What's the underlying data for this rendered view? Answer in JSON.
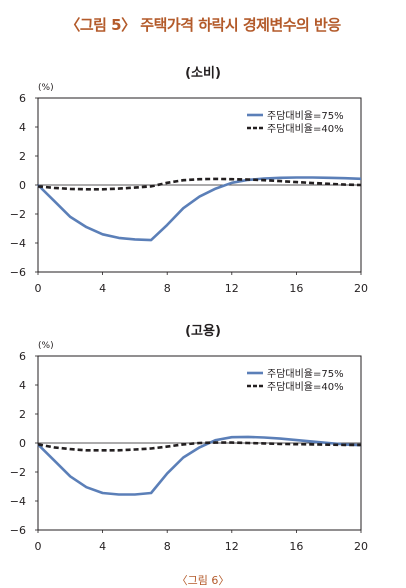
{
  "figure_title": "〈그림 5〉 주택가격 하락시 경제변수의 반응",
  "chart_data": [
    {
      "type": "line",
      "title": "(소비)",
      "unit_label": "(%)",
      "xlim": [
        0,
        20
      ],
      "ylim": [
        -6,
        6
      ],
      "xticks": [
        "0",
        "4",
        "8",
        "12",
        "16",
        "20"
      ],
      "yticks": [
        "6",
        "4",
        "2",
        "0",
        "−2",
        "−4",
        "−6"
      ],
      "legend_position": "top-right",
      "zero_line": true,
      "series": [
        {
          "name": "주담대비율=75%",
          "color": "#5b7fb8",
          "style": "solid",
          "x": [
            0,
            1,
            2,
            3,
            4,
            5,
            6,
            7,
            8,
            9,
            10,
            11,
            12,
            13,
            14,
            15,
            16,
            17,
            18,
            19,
            20
          ],
          "y": [
            0,
            -1.1,
            -2.2,
            -2.9,
            -3.4,
            -3.65,
            -3.75,
            -3.8,
            -2.75,
            -1.6,
            -0.8,
            -0.25,
            0.15,
            0.35,
            0.45,
            0.5,
            0.52,
            0.52,
            0.5,
            0.47,
            0.43
          ]
        },
        {
          "name": "주담대비율=40%",
          "color": "#231f20",
          "style": "dashed",
          "x": [
            0,
            1,
            2,
            3,
            4,
            5,
            6,
            7,
            8,
            9,
            10,
            11,
            12,
            13,
            14,
            15,
            16,
            17,
            18,
            19,
            20
          ],
          "y": [
            -0.1,
            -0.2,
            -0.27,
            -0.3,
            -0.3,
            -0.25,
            -0.18,
            -0.1,
            0.15,
            0.33,
            0.4,
            0.42,
            0.4,
            0.38,
            0.33,
            0.27,
            0.2,
            0.14,
            0.08,
            0.03,
            0.0
          ]
        }
      ]
    },
    {
      "type": "line",
      "title": "(고용)",
      "unit_label": "(%)",
      "xlim": [
        0,
        20
      ],
      "ylim": [
        -6,
        6
      ],
      "xticks": [
        "0",
        "4",
        "8",
        "12",
        "16",
        "20"
      ],
      "yticks": [
        "6",
        "4",
        "2",
        "0",
        "−2",
        "−4",
        "−6"
      ],
      "legend_position": "top-right",
      "zero_line": true,
      "series": [
        {
          "name": "주담대비율=75%",
          "color": "#5b7fb8",
          "style": "solid",
          "x": [
            0,
            1,
            2,
            3,
            4,
            5,
            6,
            7,
            8,
            9,
            10,
            11,
            12,
            13,
            14,
            15,
            16,
            17,
            18,
            19,
            20
          ],
          "y": [
            -0.1,
            -1.2,
            -2.3,
            -3.05,
            -3.45,
            -3.55,
            -3.55,
            -3.45,
            -2.1,
            -1.0,
            -0.3,
            0.2,
            0.4,
            0.42,
            0.38,
            0.3,
            0.2,
            0.1,
            0.0,
            -0.1,
            -0.15
          ]
        },
        {
          "name": "주담대비율=40%",
          "color": "#231f20",
          "style": "dashed",
          "x": [
            0,
            1,
            2,
            3,
            4,
            5,
            6,
            7,
            8,
            9,
            10,
            11,
            12,
            13,
            14,
            15,
            16,
            17,
            18,
            19,
            20
          ],
          "y": [
            -0.1,
            -0.3,
            -0.42,
            -0.5,
            -0.5,
            -0.5,
            -0.45,
            -0.38,
            -0.25,
            -0.1,
            0.0,
            0.03,
            0.03,
            0.0,
            -0.03,
            -0.06,
            -0.08,
            -0.1,
            -0.12,
            -0.13,
            -0.13
          ]
        }
      ]
    }
  ],
  "footer_partial": "〈그림 6〉"
}
